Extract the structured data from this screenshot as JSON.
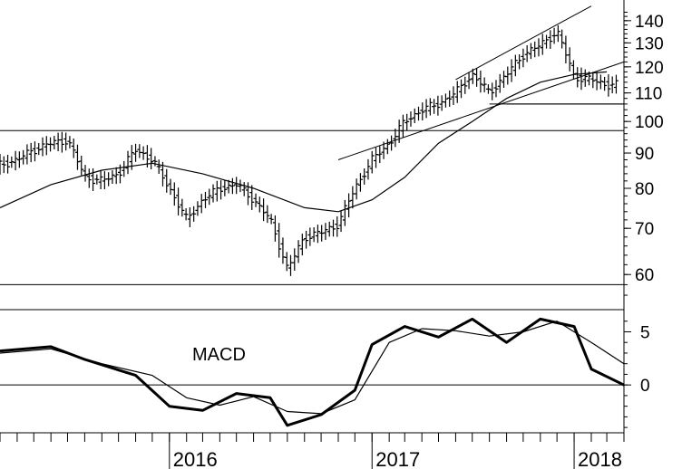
{
  "chart_data": [
    {
      "type": "bar",
      "subtype": "ohlc-weekly",
      "title": "",
      "scale": "log",
      "ylim": [
        55,
        150
      ],
      "y_ticks": [
        "140",
        "130",
        "120",
        "110",
        "100",
        "90",
        "80",
        "70",
        "60"
      ],
      "y_tick_values": [
        140,
        130,
        120,
        110,
        100,
        90,
        80,
        70,
        60
      ],
      "x_ticks": [
        "2016",
        "2017",
        "2018"
      ],
      "x_tick_dates": [
        "2016-01-01",
        "2017-01-01",
        "2018-01-01"
      ],
      "xlim": [
        "2015-03-01",
        "2018-04-01"
      ],
      "grid": false,
      "horizontal_lines": [
        97,
        58,
        106
      ],
      "series": [
        {
          "name": "",
          "points": [
            [
              "2015-03-01",
              86.5
            ],
            [
              "2015-04-01",
              88
            ],
            [
              "2015-05-01",
              91
            ],
            [
              "2015-06-01",
              93
            ],
            [
              "2015-07-01",
              94
            ],
            [
              "2015-08-01",
              83
            ],
            [
              "2015-09-01",
              82
            ],
            [
              "2015-10-01",
              84
            ],
            [
              "2015-11-01",
              91
            ],
            [
              "2015-12-01",
              88
            ],
            [
              "2016-01-01",
              80
            ],
            [
              "2016-02-01",
              72
            ],
            [
              "2016-03-01",
              77
            ],
            [
              "2016-04-01",
              80
            ],
            [
              "2016-05-01",
              81
            ],
            [
              "2016-06-01",
              77
            ],
            [
              "2016-07-01",
              72
            ],
            [
              "2016-08-01",
              61
            ],
            [
              "2016-09-01",
              68
            ],
            [
              "2016-10-01",
              69
            ],
            [
              "2016-11-01",
              71
            ],
            [
              "2016-12-01",
              80
            ],
            [
              "2017-01-01",
              88
            ],
            [
              "2017-02-01",
              93
            ],
            [
              "2017-03-01",
              100
            ],
            [
              "2017-04-01",
              104
            ],
            [
              "2017-05-01",
              106
            ],
            [
              "2017-06-01",
              110
            ],
            [
              "2017-07-01",
              117
            ],
            [
              "2017-08-01",
              110
            ],
            [
              "2017-09-01",
              117
            ],
            [
              "2017-10-01",
              125
            ],
            [
              "2017-11-01",
              129
            ],
            [
              "2017-12-01",
              135
            ],
            [
              "2018-01-01",
              116
            ],
            [
              "2018-02-01",
              115
            ],
            [
              "2018-03-01",
              113
            ]
          ]
        },
        {
          "name": "",
          "points": [
            [
              "2015-03-01",
              75
            ],
            [
              "2015-06-01",
              81
            ],
            [
              "2015-09-01",
              85
            ],
            [
              "2015-12-01",
              87
            ],
            [
              "2016-03-01",
              84
            ],
            [
              "2016-06-01",
              80
            ],
            [
              "2016-09-01",
              75
            ],
            [
              "2016-11-01",
              74
            ],
            [
              "2017-01-01",
              77
            ],
            [
              "2017-03-01",
              83
            ],
            [
              "2017-05-01",
              93
            ],
            [
              "2017-07-01",
              100
            ],
            [
              "2017-09-01",
              108
            ],
            [
              "2017-11-01",
              114
            ],
            [
              "2018-01-01",
              117
            ],
            [
              "2018-03-01",
              118
            ]
          ]
        }
      ],
      "trendlines": [
        [
          [
            "2016-11-01",
            88
          ],
          [
            "2018-04-01",
            122
          ]
        ],
        [
          [
            "2017-06-01",
            115
          ],
          [
            "2018-02-01",
            147
          ]
        ],
        [
          [
            "2017-09-01",
            106
          ],
          [
            "2018-04-01",
            106
          ]
        ]
      ]
    },
    {
      "type": "line",
      "title": "MACD",
      "ylim": [
        -4.5,
        7
      ],
      "y_ticks": [
        "5",
        "0"
      ],
      "y_tick_values": [
        5,
        0
      ],
      "horizontal_lines": [
        0
      ],
      "series": [
        {
          "name": "",
          "x": [
            "2015-03-01",
            "2015-06-01",
            "2015-08-01",
            "2015-11-01",
            "2016-01-01",
            "2016-03-01",
            "2016-05-01",
            "2016-07-01",
            "2016-08-01",
            "2016-10-01",
            "2016-12-01",
            "2017-01-01",
            "2017-03-01",
            "2017-05-01",
            "2017-07-01",
            "2017-09-01",
            "2017-11-01",
            "2018-01-01",
            "2018-02-01",
            "2018-04-01"
          ],
          "values": [
            3.2,
            3.6,
            2.4,
            0.9,
            -2.0,
            -2.4,
            -0.8,
            -1.2,
            -3.8,
            -2.8,
            -0.5,
            3.8,
            5.5,
            4.5,
            6.2,
            4.0,
            6.2,
            5.5,
            1.5,
            0.0
          ]
        },
        {
          "name": "",
          "x": [
            "2015-03-01",
            "2015-06-01",
            "2015-09-01",
            "2015-12-01",
            "2016-02-01",
            "2016-04-01",
            "2016-06-01",
            "2016-08-01",
            "2016-10-01",
            "2016-12-01",
            "2017-02-01",
            "2017-04-01",
            "2017-06-01",
            "2017-08-01",
            "2017-10-01",
            "2017-12-01",
            "2018-02-01",
            "2018-04-01"
          ],
          "values": [
            3.0,
            3.4,
            2.0,
            0.9,
            -1.2,
            -1.9,
            -1.1,
            -2.5,
            -2.7,
            -1.4,
            4.0,
            5.3,
            5.1,
            4.6,
            5.0,
            6.0,
            4.0,
            2.0
          ]
        }
      ]
    }
  ]
}
